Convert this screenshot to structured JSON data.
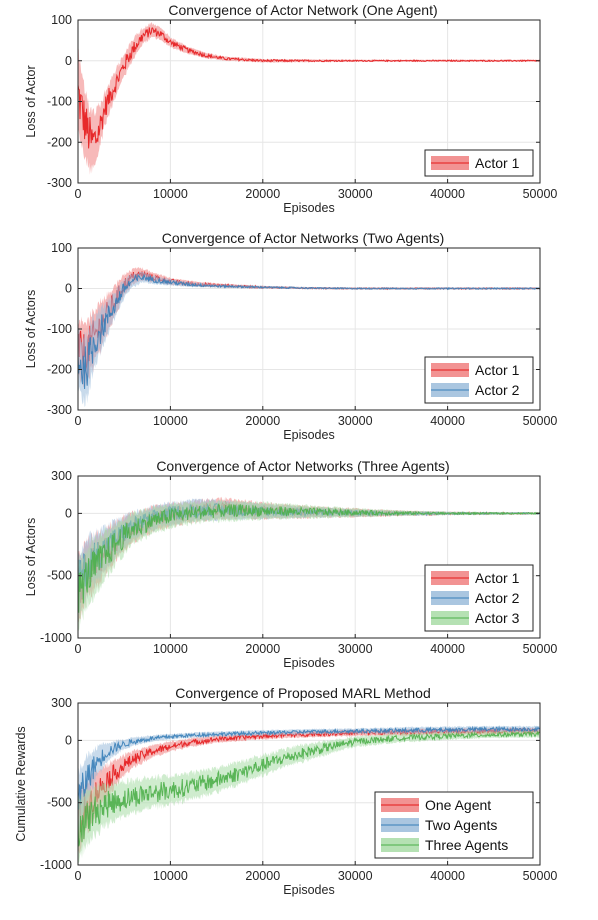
{
  "colors": {
    "red": "#e41a1c",
    "red_band": "#f08080",
    "blue": "#377eb8",
    "blue_band": "#9bbcdb",
    "green": "#4daf4a",
    "green_band": "#a8dca6",
    "grid": "#e6e6e6",
    "axis": "#262626"
  },
  "chart_data": [
    {
      "type": "line",
      "title": "Convergence of Actor Network (One Agent)",
      "xlabel": "Episodes",
      "ylabel": "Loss of Actor",
      "xlim": [
        0,
        50000
      ],
      "ylim": [
        -300,
        100
      ],
      "xticks": [
        0,
        10000,
        20000,
        30000,
        40000,
        50000
      ],
      "yticks": [
        100,
        0,
        -100,
        -200,
        -300
      ],
      "grid": true,
      "legend_position": "bottom-right",
      "series": [
        {
          "name": "Actor 1",
          "color_key": "red",
          "x": [
            0,
            500,
            1000,
            1500,
            2000,
            2500,
            3000,
            4000,
            5000,
            6000,
            7000,
            8000,
            9000,
            10000,
            12000,
            14000,
            16000,
            20000,
            25000,
            30000,
            40000,
            50000
          ],
          "y": [
            -80,
            -130,
            -170,
            -200,
            -190,
            -150,
            -110,
            -60,
            -10,
            30,
            60,
            75,
            65,
            45,
            25,
            12,
            5,
            0,
            0,
            0,
            0,
            0
          ],
          "band": [
            120,
            110,
            100,
            90,
            80,
            60,
            50,
            40,
            35,
            30,
            25,
            20,
            18,
            15,
            10,
            8,
            6,
            5,
            4,
            3,
            3,
            3
          ]
        }
      ]
    },
    {
      "type": "line",
      "title": "Convergence of Actor Networks (Two Agents)",
      "xlabel": "Episodes",
      "ylabel": "Loss of Actors",
      "xlim": [
        0,
        50000
      ],
      "ylim": [
        -300,
        100
      ],
      "xticks": [
        0,
        10000,
        20000,
        30000,
        40000,
        50000
      ],
      "yticks": [
        100,
        0,
        -100,
        -200,
        -300
      ],
      "grid": true,
      "legend_position": "bottom-right",
      "series": [
        {
          "name": "Actor 1",
          "color_key": "red",
          "x": [
            0,
            500,
            1000,
            1500,
            2000,
            3000,
            4000,
            5000,
            6000,
            7000,
            8000,
            10000,
            12000,
            15000,
            20000,
            25000,
            30000,
            40000,
            50000
          ],
          "y": [
            -140,
            -160,
            -150,
            -130,
            -110,
            -70,
            -30,
            10,
            30,
            35,
            28,
            18,
            12,
            8,
            3,
            1,
            0,
            0,
            0
          ],
          "band": [
            80,
            90,
            90,
            85,
            80,
            60,
            45,
            30,
            22,
            18,
            14,
            10,
            8,
            6,
            4,
            3,
            3,
            3,
            3
          ]
        },
        {
          "name": "Actor 2",
          "color_key": "blue",
          "x": [
            0,
            500,
            1000,
            1500,
            2000,
            3000,
            4000,
            5000,
            6000,
            7000,
            8000,
            10000,
            12000,
            15000,
            20000,
            25000,
            30000,
            40000,
            50000
          ],
          "y": [
            -170,
            -200,
            -190,
            -150,
            -120,
            -80,
            -40,
            0,
            20,
            28,
            22,
            15,
            10,
            6,
            3,
            1,
            0,
            0,
            0
          ],
          "band": [
            90,
            100,
            95,
            85,
            75,
            55,
            40,
            28,
            20,
            16,
            12,
            9,
            7,
            5,
            4,
            3,
            3,
            3,
            3
          ]
        }
      ]
    },
    {
      "type": "line",
      "title": "Convergence of Actor Networks (Three Agents)",
      "xlabel": "Episodes",
      "ylabel": "Loss of Actors",
      "xlim": [
        0,
        50000
      ],
      "ylim": [
        -1000,
        300
      ],
      "xticks": [
        0,
        10000,
        20000,
        30000,
        40000,
        50000
      ],
      "yticks": [
        300,
        0,
        -500,
        -1000
      ],
      "grid": true,
      "legend_position": "bottom-right",
      "series": [
        {
          "name": "Actor 1",
          "color_key": "red",
          "x": [
            0,
            1000,
            2000,
            3000,
            4000,
            5000,
            6000,
            8000,
            10000,
            12000,
            14000,
            16000,
            18000,
            20000,
            25000,
            30000,
            35000,
            40000,
            45000,
            50000
          ],
          "y": [
            -600,
            -450,
            -380,
            -300,
            -230,
            -160,
            -110,
            -50,
            -10,
            10,
            30,
            40,
            30,
            20,
            10,
            5,
            0,
            0,
            0,
            0
          ],
          "band": [
            300,
            280,
            250,
            220,
            190,
            160,
            140,
            120,
            110,
            100,
            100,
            95,
            85,
            75,
            55,
            40,
            25,
            15,
            12,
            10
          ]
        },
        {
          "name": "Actor 2",
          "color_key": "blue",
          "x": [
            0,
            1000,
            2000,
            3000,
            4000,
            5000,
            6000,
            8000,
            10000,
            12000,
            14000,
            16000,
            18000,
            20000,
            25000,
            30000,
            35000,
            40000,
            45000,
            50000
          ],
          "y": [
            -550,
            -420,
            -340,
            -280,
            -210,
            -150,
            -100,
            -40,
            0,
            20,
            30,
            25,
            20,
            15,
            8,
            4,
            0,
            0,
            0,
            0
          ],
          "band": [
            300,
            270,
            240,
            210,
            180,
            150,
            130,
            115,
            105,
            100,
            95,
            90,
            80,
            70,
            50,
            35,
            22,
            15,
            12,
            10
          ]
        },
        {
          "name": "Actor 3",
          "color_key": "green",
          "x": [
            0,
            1000,
            2000,
            3000,
            4000,
            5000,
            6000,
            8000,
            10000,
            12000,
            14000,
            16000,
            18000,
            20000,
            25000,
            30000,
            35000,
            40000,
            45000,
            50000
          ],
          "y": [
            -650,
            -500,
            -420,
            -330,
            -250,
            -180,
            -120,
            -60,
            -20,
            0,
            15,
            20,
            25,
            20,
            12,
            6,
            2,
            0,
            0,
            0
          ],
          "band": [
            320,
            290,
            260,
            230,
            200,
            170,
            150,
            125,
            115,
            105,
            100,
            95,
            90,
            80,
            60,
            40,
            25,
            15,
            12,
            10
          ]
        }
      ]
    },
    {
      "type": "line",
      "title": "Convergence of Proposed MARL Method",
      "xlabel": "Episodes",
      "ylabel": "Cumulative Rewards",
      "xlim": [
        0,
        50000
      ],
      "ylim": [
        -1000,
        300
      ],
      "xticks": [
        0,
        10000,
        20000,
        30000,
        40000,
        50000
      ],
      "yticks": [
        300,
        0,
        -500,
        -1000
      ],
      "grid": true,
      "legend_position": "bottom-right",
      "series": [
        {
          "name": "One Agent",
          "color_key": "red",
          "x": [
            0,
            1000,
            2000,
            3000,
            4000,
            5000,
            6000,
            8000,
            10000,
            12000,
            15000,
            20000,
            25000,
            30000,
            35000,
            40000,
            45000,
            50000
          ],
          "y": [
            -650,
            -520,
            -420,
            -330,
            -260,
            -200,
            -150,
            -90,
            -50,
            -20,
            10,
            35,
            50,
            60,
            65,
            70,
            75,
            75
          ],
          "band": [
            300,
            250,
            200,
            160,
            130,
            100,
            80,
            60,
            50,
            40,
            35,
            30,
            30,
            30,
            30,
            30,
            30,
            30
          ]
        },
        {
          "name": "Two Agents",
          "color_key": "blue",
          "x": [
            0,
            1000,
            2000,
            3000,
            4000,
            5000,
            6000,
            8000,
            10000,
            12000,
            15000,
            20000,
            25000,
            30000,
            35000,
            40000,
            45000,
            50000
          ],
          "y": [
            -500,
            -300,
            -180,
            -100,
            -60,
            -30,
            -10,
            15,
            30,
            40,
            50,
            60,
            70,
            75,
            80,
            85,
            90,
            90
          ],
          "band": [
            300,
            220,
            150,
            100,
            70,
            50,
            40,
            30,
            25,
            25,
            25,
            25,
            25,
            25,
            30,
            30,
            30,
            30
          ]
        },
        {
          "name": "Three Agents",
          "color_key": "green",
          "x": [
            0,
            1000,
            2000,
            3000,
            4000,
            5000,
            6000,
            8000,
            10000,
            12000,
            15000,
            18000,
            20000,
            22000,
            25000,
            28000,
            30000,
            35000,
            40000,
            45000,
            50000
          ],
          "y": [
            -700,
            -620,
            -560,
            -520,
            -490,
            -470,
            -450,
            -420,
            -400,
            -370,
            -320,
            -250,
            -200,
            -150,
            -90,
            -40,
            -10,
            20,
            35,
            45,
            50
          ],
          "band": [
            300,
            260,
            230,
            200,
            180,
            170,
            160,
            150,
            140,
            130,
            120,
            110,
            100,
            90,
            80,
            60,
            50,
            40,
            35,
            30,
            30
          ]
        }
      ]
    }
  ]
}
